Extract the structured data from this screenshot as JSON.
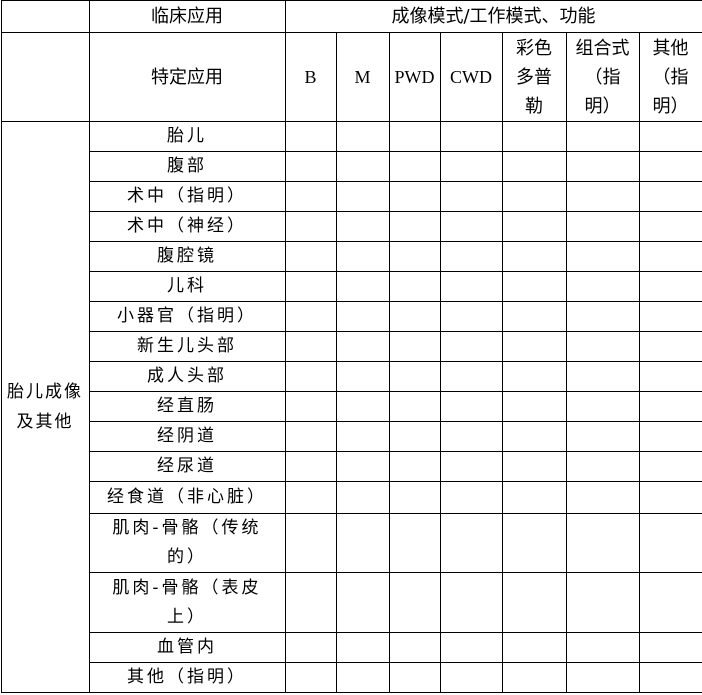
{
  "header": {
    "clinical_application": "临床应用",
    "imaging_modes": "成像模式/工作模式、功能",
    "specific_application": "特定应用",
    "modes": [
      "B",
      "M",
      "PWD",
      "CWD",
      "彩色多普勒",
      "组合式（指明）",
      "其他（指明）"
    ]
  },
  "group_label": "胎儿成像及其他",
  "rows": [
    "胎儿",
    "腹部",
    "术中（指明）",
    "术中（神经）",
    "腹腔镜",
    "儿科",
    "小器官（指明）",
    "新生儿头部",
    "成人头部",
    "经直肠",
    "经阴道",
    "经尿道",
    "经食道（非心脏）",
    "肌肉-骨骼（传统的）",
    "肌肉-骨骼（表皮上）",
    "血管内",
    "其他（指明）"
  ]
}
